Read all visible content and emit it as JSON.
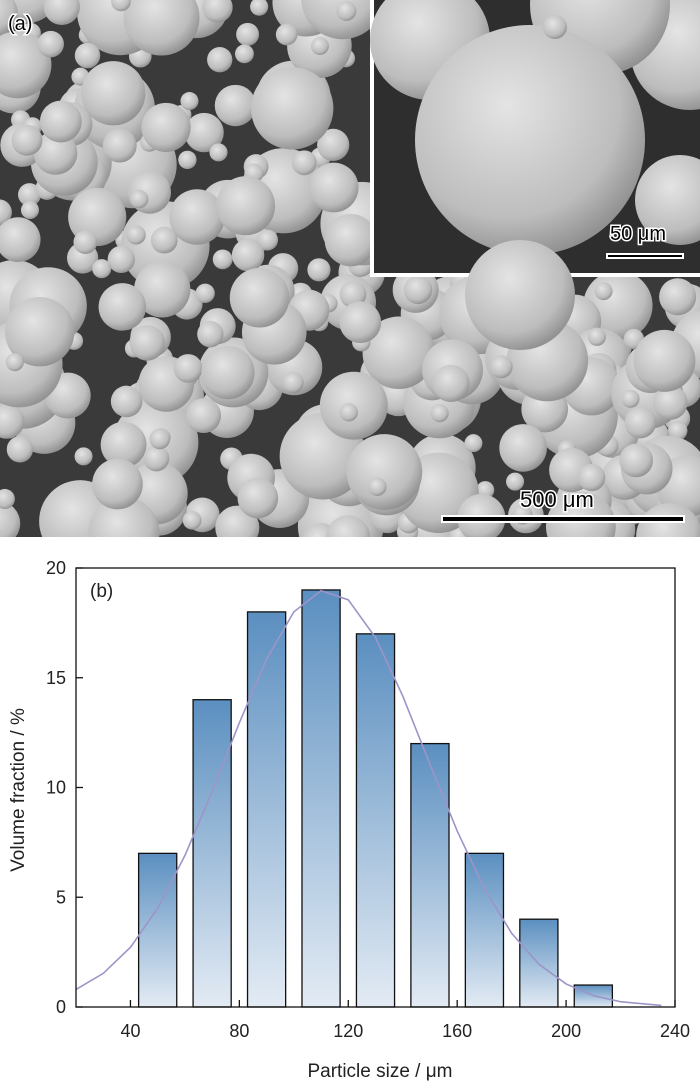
{
  "sem": {
    "panel_label": "(a)",
    "inset_scale": "50 μm",
    "scale": "500 μm"
  },
  "chart_data": {
    "type": "bar",
    "panel_label": "(b)",
    "x_label": "Particle size / μm",
    "y_label": "Volume fraction / %",
    "x": [
      50,
      70,
      90,
      110,
      130,
      150,
      170,
      190,
      210
    ],
    "values": [
      7,
      14,
      18,
      19,
      17,
      12,
      7,
      4,
      1
    ],
    "color": "#5b8fc0",
    "fit": {
      "type": "line",
      "color": "#9d94c8",
      "x": [
        20,
        30,
        40,
        50,
        60,
        70,
        80,
        90,
        100,
        110,
        120,
        130,
        140,
        150,
        160,
        170,
        180,
        190,
        200,
        210,
        220,
        235
      ],
      "values": [
        0.8,
        1.53,
        2.72,
        4.5,
        6.9,
        9.82,
        12.95,
        15.85,
        18.0,
        18.97,
        18.55,
        16.83,
        14.17,
        11.06,
        8.02,
        5.39,
        3.36,
        1.95,
        1.05,
        0.52,
        0.24,
        0.07
      ]
    },
    "xlim": [
      20,
      240
    ],
    "ylim": [
      0,
      20
    ],
    "xticks": [
      40,
      80,
      120,
      160,
      200,
      240
    ],
    "yticks": [
      0,
      5,
      10,
      15,
      20
    ]
  }
}
